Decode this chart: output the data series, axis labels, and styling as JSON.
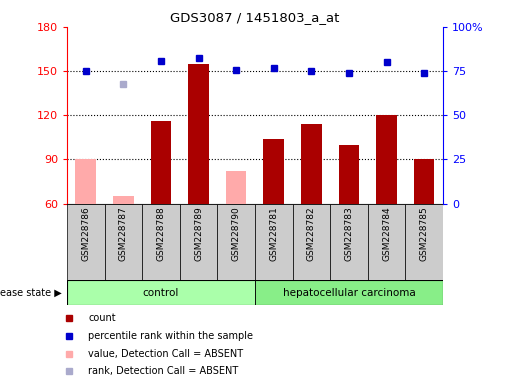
{
  "title": "GDS3087 / 1451803_a_at",
  "samples": [
    "GSM228786",
    "GSM228787",
    "GSM228788",
    "GSM228789",
    "GSM228790",
    "GSM228781",
    "GSM228782",
    "GSM228783",
    "GSM228784",
    "GSM228785"
  ],
  "count_values": [
    null,
    null,
    116,
    155,
    null,
    104,
    114,
    100,
    120,
    90
  ],
  "count_absent": [
    90,
    65,
    null,
    null,
    82,
    null,
    null,
    null,
    null,
    null
  ],
  "rank_values": [
    150,
    null,
    157,
    159,
    151,
    152,
    150,
    149,
    156,
    149
  ],
  "rank_absent": [
    null,
    141,
    null,
    null,
    null,
    null,
    null,
    null,
    null,
    null
  ],
  "ylim_left": [
    60,
    180
  ],
  "ylim_right": [
    0,
    100
  ],
  "yticks_left": [
    60,
    90,
    120,
    150,
    180
  ],
  "yticks_right": [
    0,
    25,
    50,
    75,
    100
  ],
  "bar_color": "#aa0000",
  "bar_absent_color": "#ffaaaa",
  "dot_color": "#0000cc",
  "dot_absent_color": "#aaaacc",
  "control_color": "#aaffaa",
  "carcinoma_color": "#88ee88",
  "bg_col_color": "#cccccc",
  "plot_bg": "#ffffff"
}
